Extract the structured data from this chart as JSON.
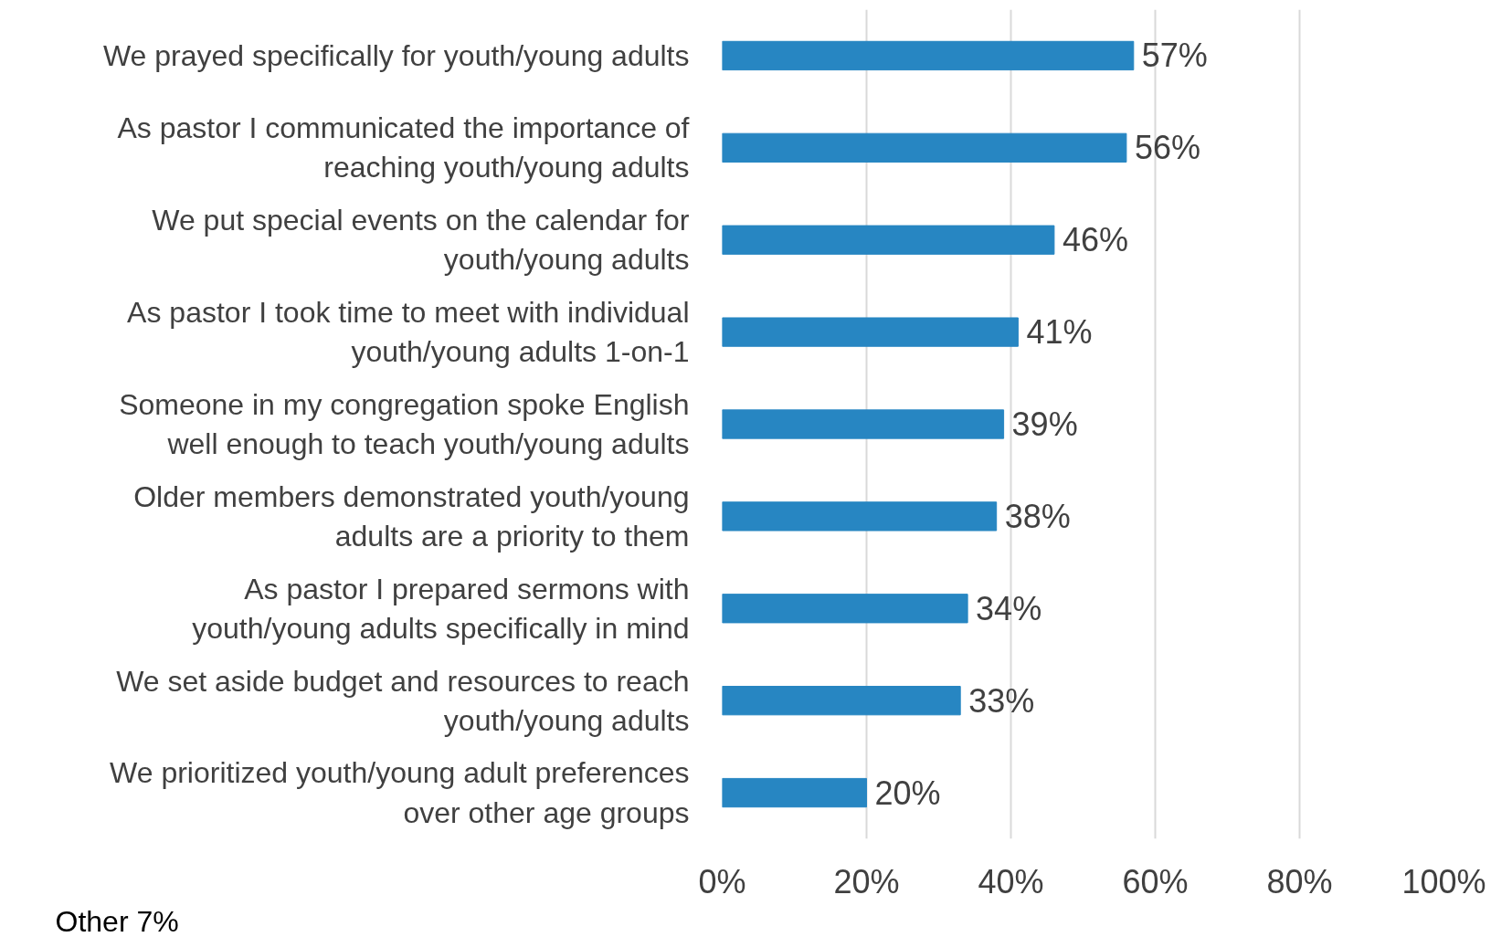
{
  "chart_data": {
    "type": "bar",
    "orientation": "horizontal",
    "categories": [
      "We prayed specifically for youth/young adults",
      "As pastor I communicated the importance of\nreaching youth/young adults",
      "We put special events on the calendar for\nyouth/young adults",
      "As pastor I took time to meet with individual\nyouth/young adults 1-on-1",
      "Someone in my congregation spoke English\nwell enough to teach youth/young adults",
      "Older members demonstrated youth/young\nadults are a priority to them",
      "As pastor I prepared sermons with\nyouth/young adults specifically in mind",
      "We set aside budget and resources to reach\nyouth/young adults",
      "We prioritized youth/young adult preferences\nover other age groups"
    ],
    "values": [
      57,
      56,
      46,
      41,
      39,
      38,
      34,
      33,
      20
    ],
    "value_labels": [
      "57%",
      "56%",
      "46%",
      "41%",
      "39%",
      "38%",
      "34%",
      "33%",
      "20%"
    ],
    "color": "#2786c2",
    "xlim": [
      0,
      100
    ],
    "xticks": [
      {
        "value": 0,
        "label": "0%"
      },
      {
        "value": 20,
        "label": "20%"
      },
      {
        "value": 40,
        "label": "40%"
      },
      {
        "value": 60,
        "label": "60%"
      },
      {
        "value": 80,
        "label": "80%"
      },
      {
        "value": 100,
        "label": "100%"
      }
    ],
    "grid": "x",
    "annotations": [
      "Other 7%"
    ]
  }
}
